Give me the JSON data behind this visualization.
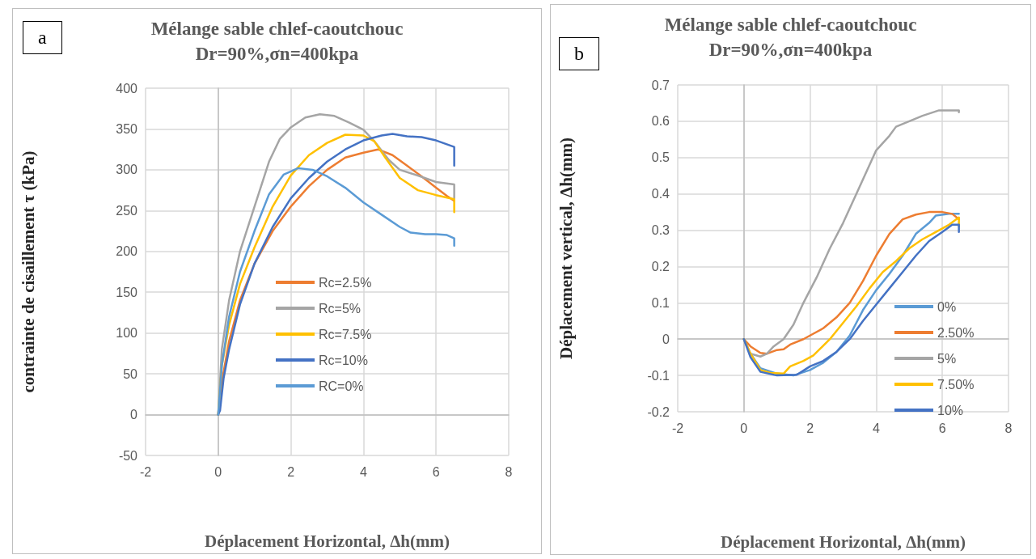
{
  "chart_data": [
    {
      "type": "line",
      "title": "Mélange sable chlef-caoutchouc",
      "subtitle": "Dr=90%,σn=400kpa",
      "xlabel": "Déplacement Horizontal, Δh(mm)",
      "ylabel": "contrainte de cisaillement τ (kPa)",
      "annotations": [
        "a"
      ],
      "xlim": [
        -2,
        8
      ],
      "xticks": [
        -2,
        0,
        2,
        4,
        6,
        8
      ],
      "ylim": [
        -50,
        400
      ],
      "yticks": [
        -50,
        0,
        50,
        100,
        150,
        200,
        250,
        300,
        350,
        400
      ],
      "grid": true,
      "legend": "bottom right",
      "marker": "none",
      "line_style": "solid",
      "series": [
        {
          "name": "Rc=2.5%",
          "color": "#ed7d31",
          "x": [
            0,
            0.1,
            0.3,
            0.6,
            1,
            1.5,
            2,
            2.5,
            3,
            3.5,
            4,
            4.4,
            4.8,
            5.2,
            5.6,
            6,
            6.3,
            6.5
          ],
          "values": [
            0,
            40,
            90,
            140,
            185,
            225,
            255,
            280,
            300,
            315,
            321,
            325,
            318,
            305,
            292,
            278,
            268,
            262
          ]
        },
        {
          "name": "Rc=5%",
          "color": "#a5a5a5",
          "x": [
            0,
            0.1,
            0.3,
            0.6,
            1,
            1.4,
            1.7,
            2,
            2.4,
            2.8,
            3.2,
            3.6,
            4,
            4.3,
            4.7,
            5,
            5.5,
            6,
            6.5,
            6.5
          ],
          "values": [
            0,
            80,
            140,
            200,
            255,
            310,
            338,
            352,
            364,
            368,
            366,
            358,
            349,
            335,
            312,
            300,
            293,
            285,
            282,
            265
          ]
        },
        {
          "name": "Rc=7.5%",
          "color": "#ffc000",
          "x": [
            0,
            0.1,
            0.3,
            0.6,
            1,
            1.5,
            2,
            2.5,
            3,
            3.5,
            4,
            4.3,
            4.6,
            5,
            5.5,
            6,
            6.5,
            6.5
          ],
          "values": [
            0,
            60,
            110,
            160,
            205,
            255,
            293,
            318,
            333,
            343,
            342,
            335,
            315,
            290,
            275,
            269,
            264,
            248
          ]
        },
        {
          "name": "Rc=10%",
          "color": "#4472c4",
          "x": [
            0,
            0.05,
            0.15,
            0.3,
            0.6,
            1,
            1.5,
            2,
            2.5,
            3,
            3.5,
            4,
            4.5,
            4.8,
            5.2,
            5.6,
            6,
            6.5,
            6.5
          ],
          "values": [
            0,
            5,
            45,
            80,
            135,
            185,
            230,
            265,
            290,
            310,
            325,
            336,
            342,
            344,
            341,
            340,
            336,
            328,
            305
          ]
        },
        {
          "name": "RC=0%",
          "color": "#5b9bd5",
          "x": [
            0,
            0.1,
            0.3,
            0.6,
            1,
            1.4,
            1.8,
            2.2,
            2.6,
            3,
            3.5,
            4,
            4.5,
            5,
            5.3,
            5.7,
            6,
            6.3,
            6.5,
            6.5
          ],
          "values": [
            0,
            60,
            120,
            175,
            225,
            270,
            294,
            302,
            300,
            292,
            278,
            260,
            245,
            230,
            223,
            221,
            221,
            220,
            216,
            207
          ]
        }
      ]
    },
    {
      "type": "line",
      "title": "Mélange sable chlef-caoutchouc",
      "subtitle": "Dr=90%,σn=400kpa",
      "xlabel": "Déplacement Horizontal, Δh(mm)",
      "ylabel": "Déplacement vertical, Δh(mm)",
      "annotations": [
        "b"
      ],
      "xlim": [
        -2,
        8
      ],
      "xticks": [
        -2,
        0,
        2,
        4,
        6,
        8
      ],
      "ylim": [
        -0.2,
        0.7
      ],
      "yticks": [
        -0.2,
        -0.1,
        0,
        0.1,
        0.2,
        0.3,
        0.4,
        0.5,
        0.6,
        0.7
      ],
      "grid": true,
      "legend": "right",
      "marker": "none",
      "line_style": "solid",
      "series": [
        {
          "name": "0%",
          "color": "#5b9bd5",
          "x": [
            0,
            0.2,
            0.5,
            1,
            1.5,
            2,
            2.4,
            2.8,
            3.2,
            3.6,
            4,
            4.4,
            4.8,
            5.2,
            5.6,
            5.8,
            6.2,
            6.5
          ],
          "values": [
            0,
            -0.04,
            -0.08,
            -0.095,
            -0.1,
            -0.085,
            -0.065,
            -0.035,
            0.01,
            0.08,
            0.135,
            0.18,
            0.23,
            0.29,
            0.32,
            0.34,
            0.345,
            0.345
          ]
        },
        {
          "name": "2.50%",
          "color": "#ed7d31",
          "x": [
            0,
            0.2,
            0.5,
            0.7,
            1,
            1.2,
            1.4,
            1.8,
            2,
            2.4,
            2.8,
            3.2,
            3.6,
            4,
            4.4,
            4.8,
            5.2,
            5.6,
            6,
            6.3,
            6.5
          ],
          "values": [
            0,
            -0.02,
            -0.038,
            -0.04,
            -0.03,
            -0.028,
            -0.015,
            0,
            0.01,
            0.03,
            0.06,
            0.1,
            0.16,
            0.23,
            0.29,
            0.33,
            0.343,
            0.35,
            0.35,
            0.345,
            0.33
          ]
        },
        {
          "name": "5%",
          "color": "#a5a5a5",
          "x": [
            0,
            0.2,
            0.5,
            0.7,
            0.9,
            1.2,
            1.5,
            1.8,
            2.2,
            2.6,
            3,
            3.4,
            3.8,
            4,
            4.4,
            4.6,
            5,
            5.4,
            5.9,
            6.5,
            6.5
          ],
          "values": [
            0,
            -0.04,
            -0.048,
            -0.04,
            -0.02,
            0,
            0.04,
            0.1,
            0.17,
            0.25,
            0.32,
            0.4,
            0.48,
            0.52,
            0.56,
            0.585,
            0.6,
            0.615,
            0.63,
            0.63,
            0.625
          ]
        },
        {
          "name": "7.50%",
          "color": "#ffc000",
          "x": [
            0,
            0.2,
            0.5,
            0.8,
            1.2,
            1.4,
            1.8,
            2.1,
            2.6,
            3,
            3.4,
            3.8,
            4.2,
            4.6,
            5,
            5.4,
            5.8,
            6.2,
            6.5,
            6.5
          ],
          "values": [
            0,
            -0.04,
            -0.085,
            -0.093,
            -0.095,
            -0.075,
            -0.06,
            -0.045,
            0,
            0.045,
            0.09,
            0.14,
            0.185,
            0.215,
            0.25,
            0.275,
            0.295,
            0.315,
            0.335,
            0.31
          ]
        },
        {
          "name": "10%",
          "color": "#4472c4",
          "x": [
            0,
            0.2,
            0.5,
            1,
            1.6,
            2,
            2.4,
            2.8,
            3.2,
            3.6,
            4,
            4.4,
            4.8,
            5.2,
            5.6,
            6,
            6.3,
            6.5,
            6.5
          ],
          "values": [
            0,
            -0.05,
            -0.09,
            -0.1,
            -0.098,
            -0.075,
            -0.06,
            -0.035,
            0,
            0.05,
            0.095,
            0.14,
            0.185,
            0.23,
            0.27,
            0.295,
            0.315,
            0.315,
            0.295
          ]
        }
      ]
    }
  ]
}
